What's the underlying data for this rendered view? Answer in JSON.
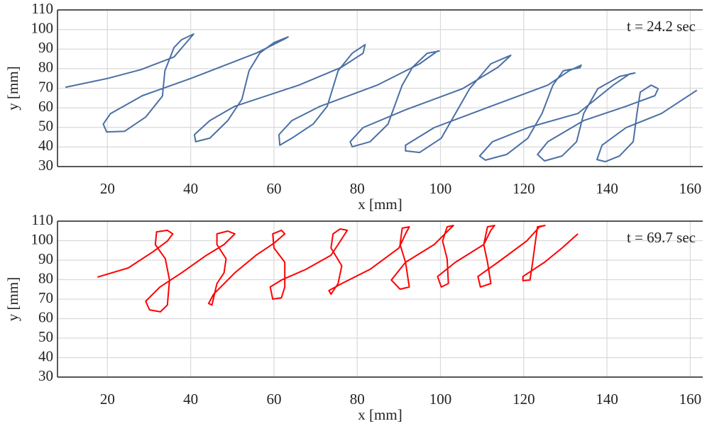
{
  "chart_data": [
    {
      "type": "line",
      "xlabel": "x [mm]",
      "ylabel": "y [mm]",
      "annotation": "t = 24.2 sec",
      "xlim": [
        8,
        163
      ],
      "ylim": [
        30,
        110
      ],
      "xticks": [
        20,
        40,
        60,
        80,
        100,
        120,
        140,
        160
      ],
      "yticks": [
        30,
        40,
        50,
        60,
        70,
        80,
        90,
        100,
        110
      ],
      "grid": true,
      "series": [
        {
          "color": "#4a6fa5",
          "x": [
            9.9,
            20,
            28,
            36,
            40.7,
            37.8,
            36,
            33.8,
            33.2,
            29.2,
            24.1,
            19.8,
            19,
            20.7,
            28.4,
            40.3,
            55.7,
            62.6,
            63.4,
            60,
            56.6,
            54,
            52.3,
            48.9,
            44.6,
            41.2,
            40.9,
            44.6,
            50.6,
            66,
            76.2,
            81.4,
            81.9,
            78.8,
            75.4,
            72.8,
            69.4,
            64.3,
            61.4,
            61.2,
            64.3,
            71.1,
            84.8,
            95,
            99.3,
            99.7,
            96.8,
            93.3,
            90.8,
            87.4,
            83.1,
            78.8,
            78.3,
            81.4,
            91.6,
            105.3,
            113.8,
            116.9,
            116.4,
            112.1,
            107,
            103.6,
            100.2,
            95,
            91.6,
            91.6,
            98.5,
            112.1,
            125.8,
            130.9,
            133.8,
            133.5,
            129.5,
            127,
            124.4,
            121,
            115.9,
            110.8,
            109.4,
            112.5,
            121,
            133,
            141.5,
            145.5,
            146.7,
            143,
            137.8,
            134.4,
            132.7,
            129.2,
            125,
            123.3,
            125.8,
            134.4,
            144.6,
            151.5,
            152.3,
            150.6,
            148,
            147.2,
            146.3,
            143,
            139.6,
            137.6,
            138.8,
            144.6,
            153.1,
            161.6
          ],
          "values": [
            70.5,
            75,
            79.5,
            86,
            97.7,
            94.8,
            90.8,
            78.9,
            66,
            55.3,
            48,
            47.7,
            51.7,
            57,
            66.2,
            75.2,
            87.9,
            95.2,
            96.2,
            93.3,
            88,
            78.9,
            64.4,
            53.5,
            44.5,
            42.7,
            46.3,
            53.5,
            60.8,
            71.6,
            80.7,
            87.9,
            92.3,
            87.9,
            78.9,
            60.8,
            51.7,
            44.5,
            40.9,
            46.3,
            53.5,
            60.8,
            71.6,
            82.5,
            89,
            89,
            87.9,
            80.7,
            71.6,
            51.7,
            42.7,
            40.1,
            42.7,
            49.9,
            59,
            69.8,
            80.7,
            86.8,
            86.4,
            82.5,
            69.8,
            57.1,
            44.5,
            37.2,
            38,
            40.9,
            49.9,
            60.8,
            71.6,
            78.9,
            81.8,
            80.5,
            78.9,
            71.6,
            57.1,
            44.5,
            36.2,
            33.3,
            35.4,
            42.7,
            49.9,
            57.1,
            71.6,
            77.4,
            77.8,
            76,
            69.8,
            57.1,
            42.7,
            35.4,
            32.9,
            36.2,
            42.7,
            53.5,
            60.8,
            66.2,
            69.8,
            71.6,
            68,
            57.1,
            42.7,
            35.4,
            32.5,
            33.6,
            40.9,
            49.9,
            57.1,
            69
          ]
        }
      ]
    },
    {
      "type": "line",
      "xlabel": "x [mm]",
      "ylabel": "y [mm]",
      "annotation": "t = 69.7 sec",
      "xlim": [
        8,
        163
      ],
      "ylim": [
        30,
        110
      ],
      "xticks": [
        20,
        40,
        60,
        80,
        100,
        120,
        140,
        160
      ],
      "yticks": [
        30,
        40,
        50,
        60,
        70,
        80,
        90,
        100,
        110
      ],
      "grid": true,
      "series": [
        {
          "color": "#ff0000",
          "x": [
            17.6,
            25,
            31,
            34.4,
            35.7,
            34.4,
            31.8,
            31.5,
            33.9,
            34.9,
            34.4,
            32.7,
            30.1,
            29.2,
            32.6,
            37.8,
            43.8,
            48,
            50.6,
            48.9,
            46.3,
            46.3,
            48.5,
            48,
            46.3,
            45.1,
            44.3,
            45.5,
            50.6,
            55.7,
            60,
            62.6,
            61.8,
            59.7,
            60,
            62.6,
            62.6,
            61.8,
            59.7,
            59.1,
            61.8,
            67.7,
            73.7,
            75.4,
            77.6,
            75.9,
            74.2,
            73.7,
            76.3,
            75.4,
            73.7,
            73.2,
            76.3,
            83.1,
            90,
            91.6,
            92.5,
            90.8,
            90.3,
            91.6,
            92.5,
            90.3,
            88.2,
            91.6,
            98.5,
            101.9,
            103.1,
            101.6,
            100.5,
            101.6,
            101.9,
            100.2,
            99.3,
            103.6,
            110.4,
            112.1,
            113,
            111.3,
            110.4,
            111.3,
            112.1,
            109.6,
            109,
            113.8,
            120.7,
            123.8,
            125.1,
            123.3,
            122.7,
            122.1,
            121.5,
            119.8,
            119.8,
            125,
            129.2,
            133
          ],
          "values": [
            81.3,
            86,
            94.4,
            99.8,
            103.5,
            105.3,
            104.5,
            98,
            90.7,
            79.8,
            67,
            63.5,
            64.5,
            68.9,
            76.2,
            83.5,
            92.5,
            98,
            103.5,
            104.9,
            103.5,
            98,
            90.7,
            83.5,
            78,
            67,
            67.8,
            72.5,
            83.5,
            92.5,
            98.7,
            103.5,
            105.3,
            103.5,
            96.2,
            88.9,
            76.2,
            70.7,
            70,
            76.2,
            79.8,
            85.3,
            92.5,
            98,
            105.3,
            106,
            103.5,
            96.2,
            87.1,
            78,
            72.5,
            74.4,
            78,
            85.3,
            96.2,
            103.5,
            107.1,
            106.4,
            98,
            88.9,
            76.2,
            75.1,
            79.8,
            88.9,
            98,
            105.3,
            107.8,
            107.1,
            99.8,
            90.7,
            78,
            76.2,
            81.6,
            88.9,
            98,
            105.3,
            107.8,
            107.1,
            98,
            88.9,
            78,
            76.2,
            81.6,
            88.9,
            99.8,
            107.1,
            107.8,
            107.1,
            98,
            88.2,
            79.8,
            79.5,
            81.6,
            88.9,
            96.2,
            103.5
          ]
        }
      ]
    }
  ]
}
